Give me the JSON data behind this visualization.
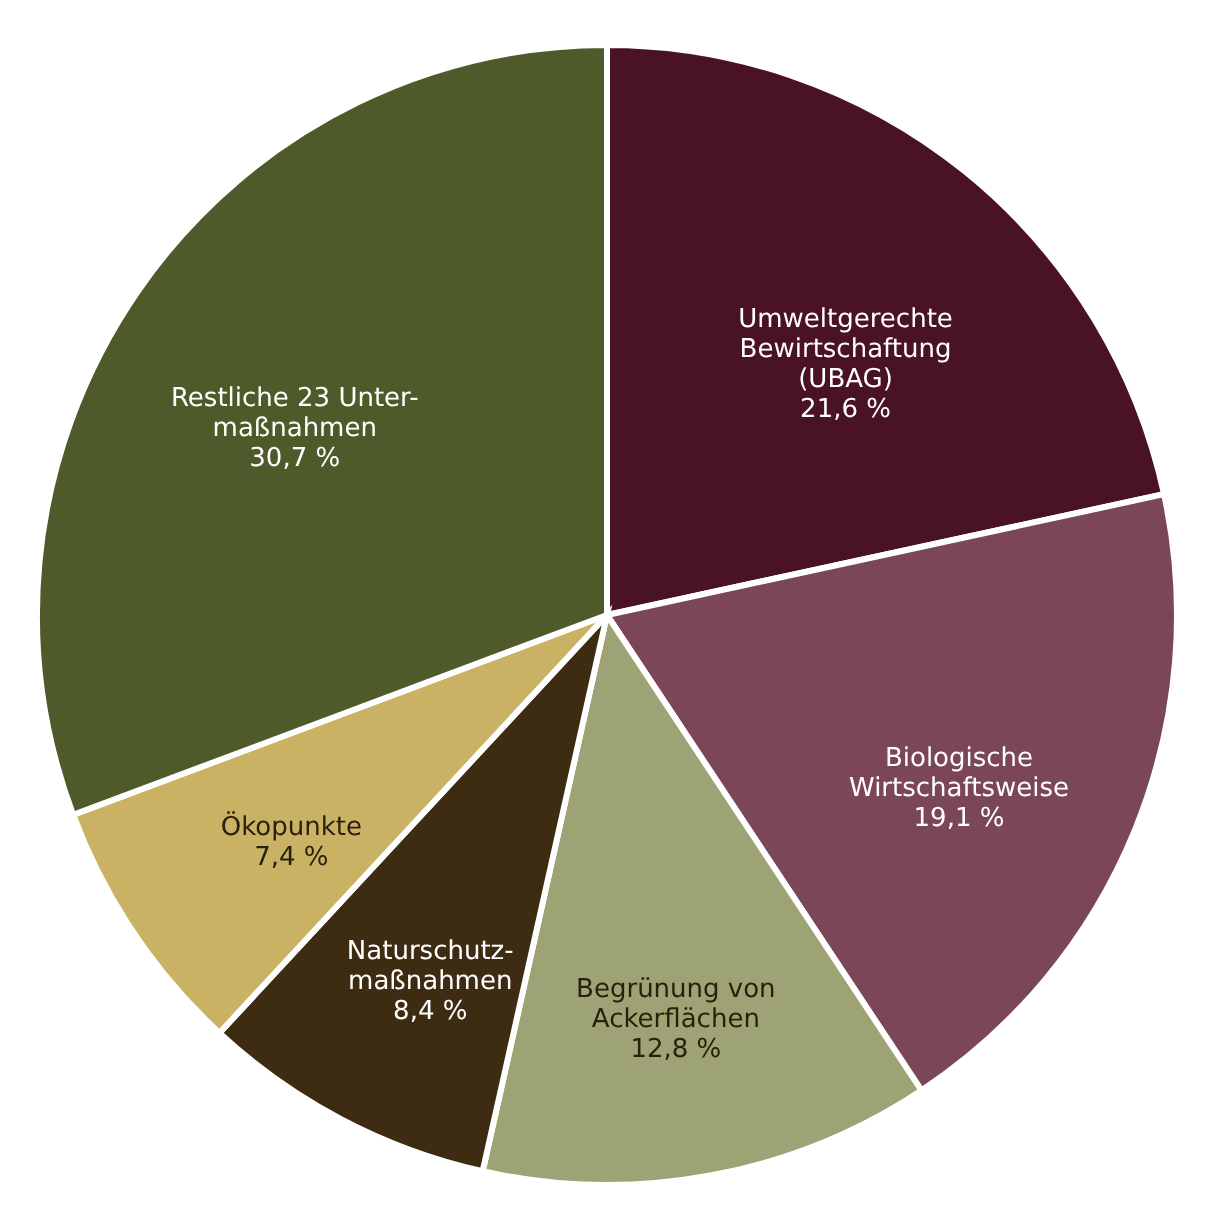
{
  "chart_data": {
    "type": "pie",
    "categories": [
      "Umweltgerechte\nBewirtschaftung\n(UBAG)",
      "Biologische\nWirtschaftsweise",
      "Begrünung von\nAckerflächen",
      "Naturschutz-\nmaßnahmen",
      "Ökopunkte",
      "Restliche 23 Unter-\nmaßnahmen"
    ],
    "values": [
      21.6,
      19.1,
      12.8,
      8.4,
      7.4,
      30.7
    ],
    "colors": [
      "#4a1226",
      "#7a4658",
      "#9da374",
      "#3e2c12",
      "#c9b263",
      "#4e5a2a"
    ],
    "value_labels": [
      "21,6 %",
      "19,1 %",
      "12,8 %",
      "8,4 %",
      "7,4 %",
      "30,7 %"
    ],
    "legend": false
  }
}
